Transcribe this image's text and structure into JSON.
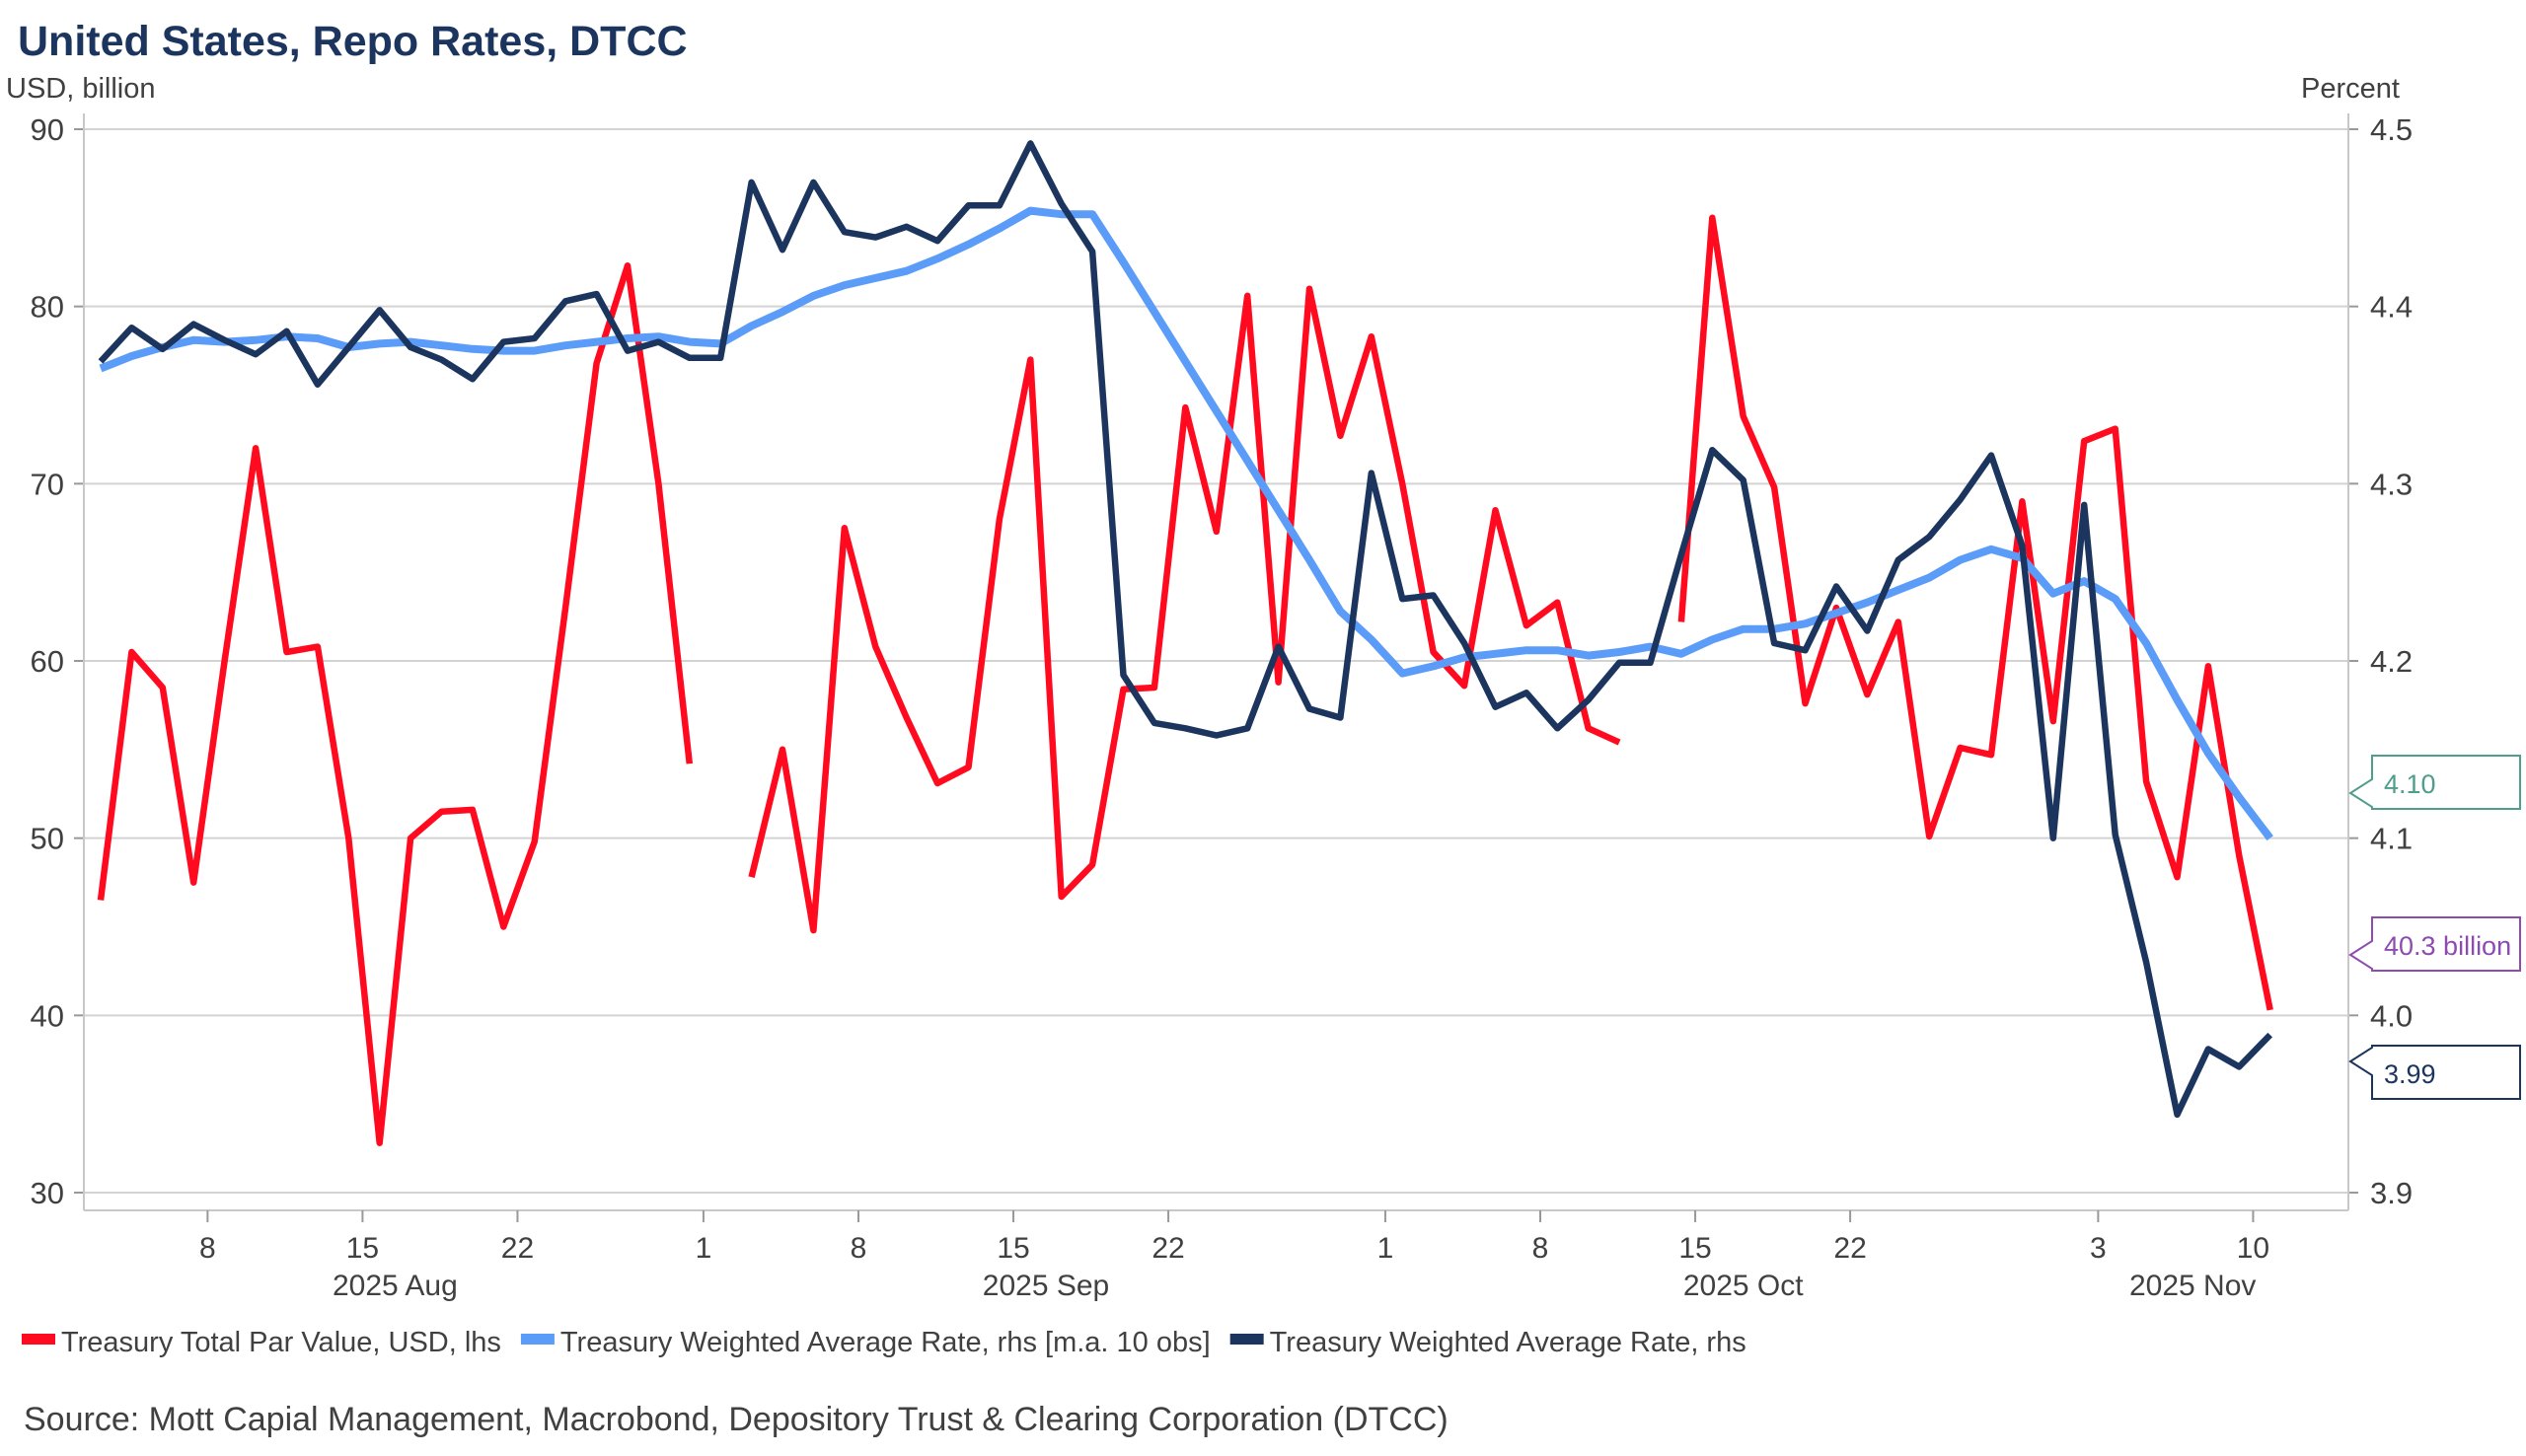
{
  "chart_data": {
    "type": "line",
    "title": "United States, Repo Rates, DTCC",
    "ylabel_left": "USD, billion",
    "ylabel_right": "Percent",
    "ylim_left": [
      30,
      90
    ],
    "ylim_right": [
      3.9,
      4.5
    ],
    "yticks_left": [
      30,
      40,
      50,
      60,
      70,
      80,
      90
    ],
    "yticks_right": [
      "3.9",
      "4.0",
      "4.1",
      "4.2",
      "4.3",
      "4.4",
      "4.5"
    ],
    "grid": true,
    "legend_placement": "bottom",
    "x": [
      "2025-08-04",
      "2025-08-05",
      "2025-08-06",
      "2025-08-07",
      "2025-08-08",
      "2025-08-11",
      "2025-08-12",
      "2025-08-13",
      "2025-08-14",
      "2025-08-15",
      "2025-08-18",
      "2025-08-19",
      "2025-08-20",
      "2025-08-21",
      "2025-08-22",
      "2025-08-25",
      "2025-08-26",
      "2025-08-27",
      "2025-08-28",
      "2025-08-29",
      "2025-09-01",
      "2025-09-02",
      "2025-09-03",
      "2025-09-04",
      "2025-09-05",
      "2025-09-08",
      "2025-09-09",
      "2025-09-10",
      "2025-09-11",
      "2025-09-12",
      "2025-09-15",
      "2025-09-16",
      "2025-09-17",
      "2025-09-18",
      "2025-09-19",
      "2025-09-22",
      "2025-09-23",
      "2025-09-24",
      "2025-09-25",
      "2025-09-26",
      "2025-09-29",
      "2025-09-30",
      "2025-10-01",
      "2025-10-02",
      "2025-10-03",
      "2025-10-06",
      "2025-10-07",
      "2025-10-08",
      "2025-10-09",
      "2025-10-10",
      "2025-10-13",
      "2025-10-14",
      "2025-10-15",
      "2025-10-16",
      "2025-10-17",
      "2025-10-20",
      "2025-10-21",
      "2025-10-22",
      "2025-10-23",
      "2025-10-24",
      "2025-10-27",
      "2025-10-28",
      "2025-10-29",
      "2025-10-30",
      "2025-10-31",
      "2025-11-03",
      "2025-11-04",
      "2025-11-05",
      "2025-11-06",
      "2025-11-07",
      "2025-11-10"
    ],
    "xticks": [
      {
        "date": "2025-08-08",
        "label": "8"
      },
      {
        "date": "2025-08-15",
        "label": "15"
      },
      {
        "date": "2025-08-22",
        "label": "22"
      },
      {
        "date": "2025-09-01",
        "label": "1"
      },
      {
        "date": "2025-09-08",
        "label": "8"
      },
      {
        "date": "2025-09-15",
        "label": "15"
      },
      {
        "date": "2025-09-22",
        "label": "22"
      },
      {
        "date": "2025-10-01",
        "label": "1"
      },
      {
        "date": "2025-10-08",
        "label": "8"
      },
      {
        "date": "2025-10-15",
        "label": "15"
      },
      {
        "date": "2025-10-22",
        "label": "22"
      },
      {
        "date": "2025-11-03",
        "label": "3"
      },
      {
        "date": "2025-11-10",
        "label": "10"
      }
    ],
    "month_labels": [
      {
        "month": "2025-08",
        "label": "2025 Aug"
      },
      {
        "month": "2025-09",
        "label": "2025 Sep"
      },
      {
        "month": "2025-10",
        "label": "2025 Oct"
      },
      {
        "month": "2025-11",
        "label": "2025 Nov"
      }
    ],
    "series": [
      {
        "name": "Treasury Total Par Value, USD, lhs",
        "axis": "left",
        "color": "#ff0a1e",
        "values": [
          46.5,
          60.5,
          58.5,
          47.5,
          60,
          72,
          60.5,
          60.8,
          50,
          32.8,
          50,
          51.5,
          51.6,
          45,
          49.8,
          63,
          76.8,
          82.3,
          70,
          54.2,
          null,
          47.8,
          55,
          44.8,
          67.5,
          60.8,
          56.8,
          53.1,
          54,
          68,
          77,
          46.7,
          48.5,
          58.4,
          58.5,
          74.3,
          67.3,
          80.6,
          58.8,
          81,
          72.7,
          78.3,
          70,
          60.5,
          58.6,
          68.5,
          62,
          63.3,
          56.2,
          55.4,
          null,
          62.2,
          85,
          73.8,
          69.8,
          57.6,
          63,
          58.1,
          62.2,
          50.1,
          55.1,
          54.7,
          69,
          56.6,
          72.4,
          73.1,
          53.2,
          47.8,
          59.7,
          49,
          40.3
        ]
      },
      {
        "name": "Treasury Weighted Average Rate, rhs [m.a. 10 obs]",
        "axis": "right",
        "color": "#5b9cf8",
        "values": [
          4.365,
          4.372,
          4.377,
          4.381,
          4.38,
          4.381,
          4.383,
          4.382,
          4.377,
          4.379,
          4.38,
          4.378,
          4.376,
          4.375,
          4.375,
          4.378,
          4.38,
          4.382,
          4.383,
          4.38,
          4.379,
          4.389,
          4.397,
          4.406,
          4.412,
          4.416,
          4.42,
          4.427,
          4.435,
          4.444,
          4.454,
          4.452,
          4.452,
          4.425,
          4.397,
          4.369,
          4.341,
          4.313,
          4.285,
          4.257,
          4.228,
          4.212,
          4.193,
          4.197,
          4.202,
          4.204,
          4.206,
          4.206,
          4.203,
          4.205,
          4.208,
          4.204,
          4.212,
          4.218,
          4.218,
          4.221,
          4.227,
          4.233,
          4.24,
          4.247,
          4.257,
          4.263,
          4.258,
          4.238,
          4.245,
          4.235,
          4.21,
          4.178,
          4.148,
          4.123,
          4.1
        ]
      },
      {
        "name": "Treasury Weighted Average Rate, rhs",
        "axis": "right",
        "color": "#1c355e",
        "values": [
          4.369,
          4.388,
          4.376,
          4.39,
          4.381,
          4.373,
          4.386,
          4.356,
          4.377,
          4.398,
          4.377,
          4.37,
          4.359,
          4.38,
          4.382,
          4.403,
          4.407,
          4.375,
          4.38,
          4.371,
          4.371,
          4.47,
          4.432,
          4.47,
          4.442,
          4.439,
          4.445,
          4.437,
          4.457,
          4.457,
          4.492,
          4.458,
          4.431,
          4.192,
          4.165,
          4.162,
          4.158,
          4.162,
          4.208,
          4.173,
          4.168,
          4.306,
          4.235,
          4.237,
          4.21,
          4.174,
          4.182,
          4.162,
          4.178,
          4.199,
          4.199,
          4.26,
          4.319,
          4.302,
          4.21,
          4.206,
          4.242,
          4.217,
          4.257,
          4.27,
          4.291,
          4.316,
          4.265,
          4.1,
          4.288,
          4.102,
          4.03,
          3.944,
          3.981,
          3.971,
          3.989
        ]
      }
    ],
    "last_value_labels": [
      {
        "text": "4.10",
        "series": 1,
        "color": "#4f9e8c"
      },
      {
        "text": "40.3 billion",
        "series": 0,
        "color": "#8e4bb0"
      },
      {
        "text": "3.99",
        "series": 2,
        "color": "#1c355e"
      }
    ],
    "source": "Source: Mott Capial Management, Macrobond, Depository Trust & Clearing Corporation (DTCC)"
  }
}
